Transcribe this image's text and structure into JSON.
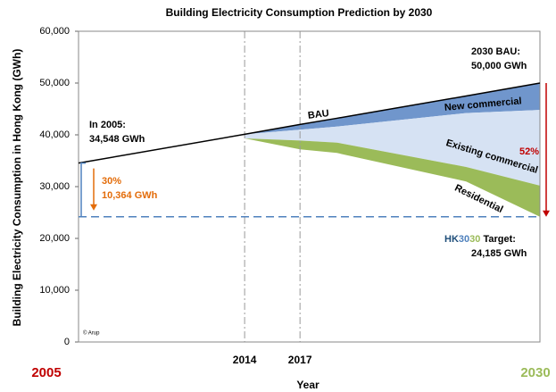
{
  "chart_data": {
    "type": "area",
    "title": "Building Electricity Consumption Prediction by 2030",
    "y_label": "Building Electricity Consumption in Hong Kong (GWh)",
    "x_label": "Year",
    "xlim": [
      2005,
      2030
    ],
    "xticks": [
      2005,
      2014,
      2017,
      2030
    ],
    "ylim": [
      0,
      60000
    ],
    "yticks": [
      0,
      {
        "value": 10000,
        "label": "10,000"
      },
      {
        "value": 20000,
        "label": "20,000"
      },
      {
        "value": 30000,
        "label": "30,000"
      },
      {
        "value": 40000,
        "label": "40,000"
      },
      {
        "value": 50000,
        "label": "50,000"
      },
      {
        "value": 60000,
        "label": "60,000"
      }
    ],
    "grid": "x",
    "x": [
      2005,
      2014,
      2017,
      2019,
      2026,
      2030
    ],
    "line": {
      "name": "BAU",
      "color": "#000000",
      "values": [
        34548,
        40100,
        42000,
        43200,
        47500,
        50000
      ]
    },
    "series": [
      {
        "name": "New commercial",
        "color": "#7096cc",
        "values": [
          null,
          0,
          1000,
          1600,
          3300,
          5200
        ]
      },
      {
        "name": "Existing commercial",
        "color": "#d6e2f3",
        "values": [
          null,
          800,
          2100,
          3100,
          10400,
          14600
        ]
      },
      {
        "name": "Residential",
        "color": "#9bbb59",
        "values": [
          null,
          0,
          1700,
          2000,
          2800,
          6015
        ]
      }
    ],
    "target": 24185,
    "annotations": {
      "start_label": "In 2005:",
      "start_value": "34,548 GWh",
      "bau_label": "2030 BAU:",
      "bau_value": "50,000 GWh",
      "reduction_pct": "30%",
      "reduction_value": "10,364 GWh",
      "total_pct": "52%",
      "target_parts": [
        "HK",
        "30",
        "30",
        " Target:"
      ],
      "target_value": "24,185 GWh",
      "credit": "© Arup"
    }
  }
}
